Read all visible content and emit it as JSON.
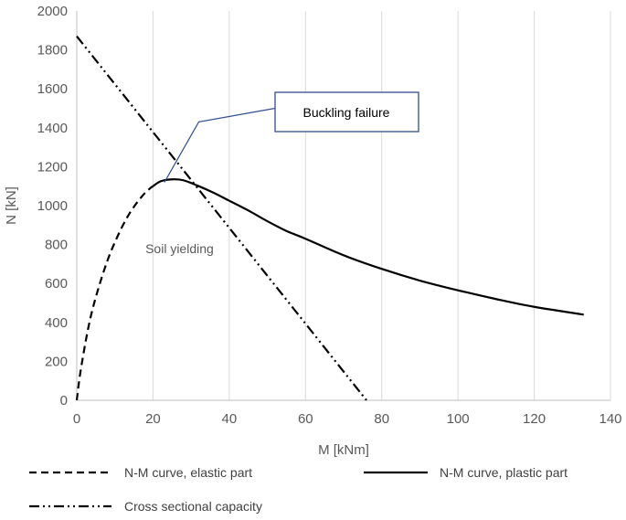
{
  "chart_data": {
    "type": "line",
    "xlabel": "M [kNm]",
    "ylabel": "N [kN]",
    "xlim": [
      0,
      140
    ],
    "ylim": [
      0,
      2000
    ],
    "xticks": [
      0,
      20,
      40,
      60,
      80,
      100,
      120,
      140
    ],
    "yticks": [
      0,
      200,
      400,
      600,
      800,
      1000,
      1200,
      1400,
      1600,
      1800,
      2000
    ],
    "grid": "vertical",
    "legend": "bottom",
    "series": [
      {
        "name": "N-M curve, elastic part",
        "style": "dashed",
        "color": "#000000",
        "x": [
          0,
          1,
          3,
          5,
          8,
          11,
          14,
          17,
          19,
          20
        ],
        "y": [
          0,
          150,
          370,
          530,
          715,
          855,
          965,
          1045,
          1085,
          1100
        ]
      },
      {
        "name": "N-M curve, plastic part",
        "style": "solid",
        "color": "#000000",
        "x": [
          20,
          22,
          25,
          28,
          32,
          36,
          40,
          45,
          50,
          55,
          60,
          70,
          80,
          90,
          100,
          110,
          120,
          133
        ],
        "y": [
          1100,
          1125,
          1135,
          1130,
          1100,
          1065,
          1025,
          975,
          920,
          870,
          830,
          745,
          675,
          615,
          565,
          520,
          480,
          440
        ]
      },
      {
        "name": "Cross sectional capacity",
        "style": "dash-dot-dot",
        "color": "#000000",
        "x": [
          0,
          76
        ],
        "y": [
          1870,
          0
        ]
      }
    ],
    "annotations": [
      {
        "text": "Soil yielding",
        "x": 18,
        "y": 780
      },
      {
        "text": "Buckling failure",
        "box": true,
        "box_color": "#2F4F8F",
        "pointer": [
          [
            23,
            1120
          ],
          [
            32,
            1430
          ],
          [
            52,
            1500
          ]
        ]
      }
    ]
  }
}
